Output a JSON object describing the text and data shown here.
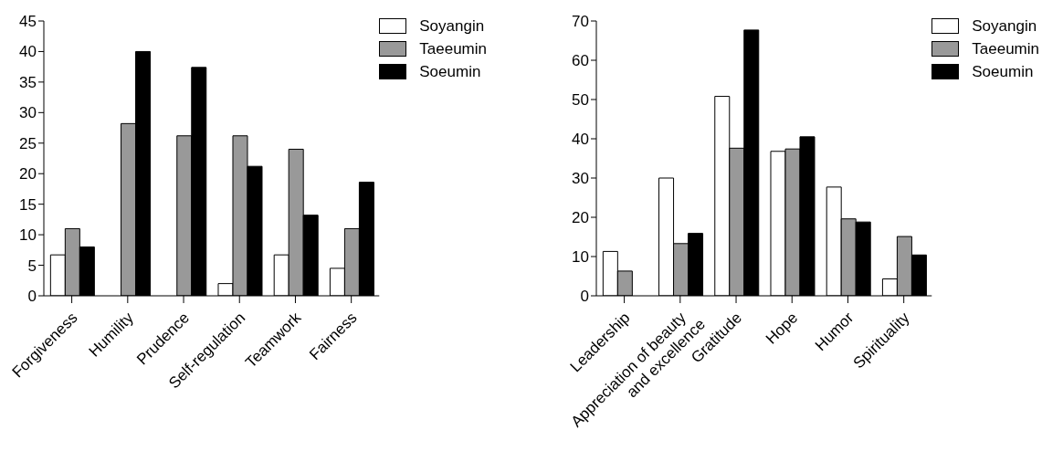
{
  "chart_data": [
    {
      "type": "bar",
      "categories": [
        "Forgiveness",
        "Humility",
        "Prudence",
        "Self-regulation",
        "Teamwork",
        "Fairness"
      ],
      "series": [
        {
          "name": "Soyangin",
          "color": "#ffffff",
          "values": [
            6.7,
            0,
            0,
            2.0,
            6.7,
            4.5
          ]
        },
        {
          "name": "Taeeumin",
          "color": "#999999",
          "values": [
            11.0,
            28.2,
            26.2,
            26.2,
            24.0,
            11.0
          ]
        },
        {
          "name": "Soeumin",
          "color": "#000000",
          "values": [
            8.0,
            40.0,
            37.4,
            21.2,
            13.2,
            18.6
          ]
        }
      ],
      "ylim": [
        0,
        45
      ],
      "yticks": [
        0,
        5,
        10,
        15,
        20,
        25,
        30,
        35,
        40,
        45
      ],
      "grid": false,
      "legend": "top right"
    },
    {
      "type": "bar",
      "categories": [
        "Leadership",
        "Appreciation of beauty\nand excellence",
        "Gratitude",
        "Hope",
        "Humor",
        "Spirituality"
      ],
      "series": [
        {
          "name": "Soyangin",
          "color": "#ffffff",
          "values": [
            11.3,
            30.0,
            50.8,
            36.8,
            27.7,
            4.3
          ]
        },
        {
          "name": "Taeeumin",
          "color": "#999999",
          "values": [
            6.3,
            13.3,
            37.6,
            37.4,
            19.6,
            15.1
          ]
        },
        {
          "name": "Soeumin",
          "color": "#000000",
          "values": [
            0,
            15.9,
            67.7,
            40.5,
            18.8,
            10.4
          ]
        }
      ],
      "ylim": [
        0,
        70
      ],
      "yticks": [
        0,
        10,
        20,
        30,
        40,
        50,
        60,
        70
      ],
      "grid": false,
      "legend": "top right"
    }
  ]
}
